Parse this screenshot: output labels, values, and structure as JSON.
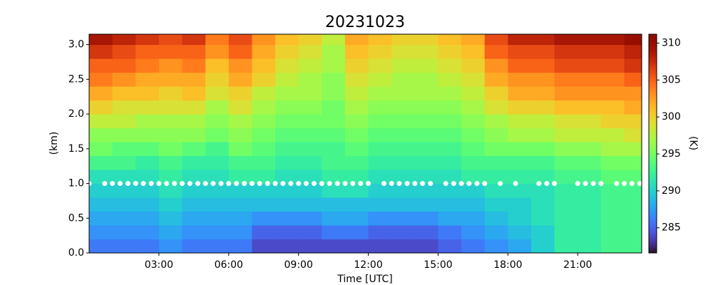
{
  "chart_data": {
    "type": "heatmap",
    "title": "20231023",
    "xlabel": "Time [UTC]",
    "ylabel": "(km)",
    "colorbar_label": "(K)",
    "colormap": "turbo",
    "xlim": [
      0,
      23.75
    ],
    "ylim": [
      0,
      3.15
    ],
    "xticks": [
      {
        "value": 3,
        "label": "03:00"
      },
      {
        "value": 6,
        "label": "06:00"
      },
      {
        "value": 9,
        "label": "09:00"
      },
      {
        "value": 12,
        "label": "12:00"
      },
      {
        "value": 15,
        "label": "15:00"
      },
      {
        "value": 18,
        "label": "18:00"
      },
      {
        "value": 21,
        "label": "21:00"
      }
    ],
    "yticks": [
      {
        "value": 0,
        "label": "0.0"
      },
      {
        "value": 0.5,
        "label": "0.5"
      },
      {
        "value": 1,
        "label": "1.0"
      },
      {
        "value": 1.5,
        "label": "1.5"
      },
      {
        "value": 2,
        "label": "2.0"
      },
      {
        "value": 2.5,
        "label": "2.5"
      },
      {
        "value": 3,
        "label": "3.0"
      }
    ],
    "clim": [
      281.6,
      311.2
    ],
    "cticks": [
      285,
      290,
      295,
      300,
      305,
      310
    ],
    "x_edges": [
      0,
      1,
      2,
      3,
      4,
      5,
      6,
      7,
      8,
      9,
      10,
      11,
      12,
      13,
      14,
      15,
      16,
      17,
      18,
      19,
      20,
      21,
      22,
      23,
      24
    ],
    "y_edges": [
      0,
      0.2,
      0.4,
      0.6,
      0.8,
      1.0,
      1.2,
      1.4,
      1.6,
      1.8,
      2.0,
      2.2,
      2.4,
      2.6,
      2.8,
      3.0,
      3.2
    ],
    "values": [
      [
        286,
        287,
        288,
        289,
        290,
        291,
        293,
        295,
        296,
        298,
        300,
        302,
        304,
        305,
        307,
        309
      ],
      [
        286,
        287,
        288,
        289,
        290,
        291,
        293,
        294,
        296,
        298,
        299,
        301,
        303,
        305,
        306,
        308
      ],
      [
        286,
        287,
        288,
        289,
        290,
        291,
        292,
        294,
        296,
        297,
        299,
        301,
        302,
        304,
        305,
        307
      ],
      [
        287,
        288,
        289,
        290,
        291,
        292,
        293,
        295,
        296,
        297,
        299,
        300,
        302,
        303,
        305,
        306
      ],
      [
        286,
        287,
        288,
        289,
        290,
        291,
        292,
        294,
        296,
        297,
        299,
        301,
        302,
        304,
        305,
        307
      ],
      [
        286,
        287,
        288,
        289,
        290,
        291,
        292,
        293,
        295,
        296,
        297,
        299,
        300,
        301,
        303,
        304
      ],
      [
        286,
        287,
        288,
        289,
        290,
        292,
        293,
        295,
        296,
        297,
        299,
        300,
        302,
        303,
        305,
        306
      ],
      [
        284,
        285,
        287,
        289,
        290,
        292,
        293,
        294,
        295,
        296,
        297,
        298,
        300,
        301,
        302,
        303
      ],
      [
        284,
        285,
        287,
        289,
        290,
        291,
        292,
        293,
        294,
        295,
        296,
        297,
        298,
        299,
        300,
        301
      ],
      [
        284,
        285,
        287,
        289,
        290,
        291,
        292,
        293,
        294,
        295,
        296,
        297,
        297,
        298,
        299,
        300
      ],
      [
        284,
        286,
        288,
        289,
        291,
        292,
        293,
        293,
        294,
        295,
        295,
        296,
        296,
        297,
        297,
        298
      ],
      [
        284,
        286,
        288,
        289,
        291,
        292,
        293,
        294,
        295,
        296,
        297,
        298,
        299,
        300,
        301,
        302
      ],
      [
        284,
        285,
        287,
        289,
        290,
        291,
        292,
        293,
        294,
        295,
        296,
        297,
        298,
        299,
        300,
        301
      ],
      [
        284,
        285,
        287,
        289,
        290,
        291,
        292,
        293,
        294,
        295,
        296,
        297,
        297,
        298,
        299,
        300
      ],
      [
        284,
        285,
        287,
        289,
        290,
        291,
        292,
        293,
        294,
        295,
        296,
        297,
        297,
        298,
        299,
        300
      ],
      [
        285,
        286,
        288,
        289,
        290,
        291,
        292,
        293,
        294,
        295,
        296,
        297,
        298,
        299,
        300,
        301
      ],
      [
        286,
        287,
        288,
        289,
        290,
        292,
        293,
        294,
        295,
        296,
        297,
        298,
        299,
        300,
        301,
        302
      ],
      [
        287,
        288,
        289,
        290,
        291,
        292,
        293,
        295,
        296,
        297,
        299,
        300,
        302,
        303,
        305,
        306
      ],
      [
        288,
        289,
        290,
        290,
        291,
        292,
        293,
        295,
        297,
        298,
        300,
        302,
        303,
        305,
        306,
        308
      ],
      [
        290,
        290,
        291,
        291,
        291,
        292,
        293,
        295,
        297,
        298,
        300,
        302,
        303,
        305,
        306,
        308
      ],
      [
        292,
        292,
        292,
        292,
        292,
        293,
        294,
        296,
        298,
        299,
        301,
        303,
        304,
        306,
        307,
        309
      ],
      [
        292,
        292,
        292,
        292,
        292,
        293,
        294,
        296,
        298,
        299,
        301,
        303,
        304,
        306,
        307,
        309
      ],
      [
        293,
        293,
        293,
        293,
        293,
        294,
        295,
        297,
        298,
        300,
        301,
        303,
        304,
        306,
        307,
        309
      ],
      [
        293,
        293,
        293,
        293,
        293,
        294,
        295,
        297,
        299,
        300,
        302,
        303,
        305,
        307,
        308,
        310
      ]
    ],
    "markers": {
      "color": "#ffffff",
      "x": [
        0,
        0.67,
        1,
        1.33,
        1.67,
        2,
        2.33,
        2.67,
        3,
        3.33,
        3.67,
        4,
        4.33,
        4.67,
        5,
        5.33,
        5.67,
        6,
        6.33,
        6.67,
        7,
        7.33,
        7.67,
        8,
        8.33,
        8.67,
        9,
        9.33,
        9.67,
        10,
        10.33,
        10.67,
        11,
        11.33,
        11.67,
        12,
        12.67,
        13,
        13.33,
        13.67,
        14,
        14.33,
        14.67,
        15.33,
        15.67,
        16,
        16.33,
        16.67,
        17,
        17.67,
        18.33,
        19.33,
        19.67,
        20,
        21,
        21.33,
        21.67,
        22,
        22.67,
        23,
        23.33,
        23.67
      ],
      "y": [
        1,
        1,
        1,
        1,
        1,
        1,
        1,
        1,
        1,
        1,
        1,
        1,
        1,
        1,
        1,
        1,
        1,
        1,
        1,
        1,
        1,
        1,
        1,
        1,
        1,
        1,
        1,
        1,
        1,
        1,
        1,
        1,
        1,
        1,
        1,
        1,
        1,
        1,
        1,
        1,
        1,
        1,
        1,
        1,
        1,
        1,
        1,
        1,
        1,
        1,
        1,
        1,
        1,
        1,
        1,
        1,
        1,
        1,
        1,
        1,
        1,
        1
      ]
    }
  }
}
